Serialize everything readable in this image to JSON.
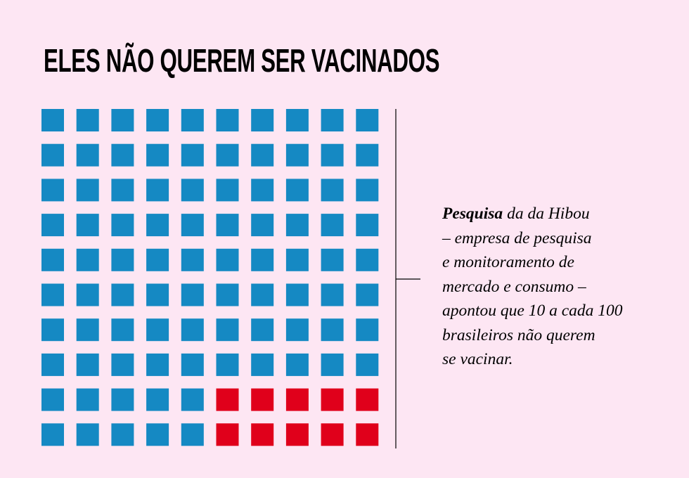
{
  "page": {
    "background": "#fde6f3",
    "text_color": "#000000",
    "title": "ELES NÃO QUEREM SER VACINADOS",
    "note": "Pesquisa da da Hibou\n– empresa de pesquisa\ne monitoramento de\nmercado e consumo –\napontou que 10 a cada 100\nbrasileiros não querem\nse vacinar."
  },
  "chart_data": {
    "type": "waffle",
    "title": "ELES NÃO QUEREM SER VACINADOS",
    "rows": 10,
    "columns": 10,
    "total": 100,
    "series": [
      {
        "name": "querem se vacinar",
        "value": 90,
        "color": "#1589c3"
      },
      {
        "name": "não querem se vacinar",
        "value": 10,
        "color": "#e0001b"
      }
    ],
    "annotation": "Pesquisa da da Hibou – empresa de pesquisa e monitoramento de mercado e consumo – apontou que 10 a cada 100 brasileiros não querem se vacinar."
  }
}
